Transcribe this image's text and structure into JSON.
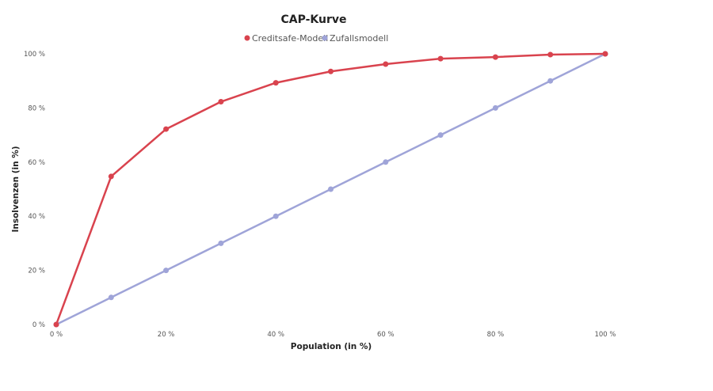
{
  "chart_data": {
    "type": "line",
    "title": "CAP-Kurve",
    "xlabel": "Population (in %)",
    "ylabel": "Insolvenzen (in %)",
    "x": [
      0,
      10,
      20,
      30,
      40,
      50,
      60,
      70,
      80,
      90,
      100
    ],
    "xlim": [
      0,
      100
    ],
    "ylim": [
      0,
      100
    ],
    "x_ticks": [
      "0 %",
      "20 %",
      "40 %",
      "60 %",
      "80 %",
      "100 %"
    ],
    "y_ticks": [
      "0 %",
      "20 %",
      "40 %",
      "60 %",
      "80 %",
      "100 %"
    ],
    "grid": false,
    "legend_position": "top",
    "series": [
      {
        "name": "Creditsafe-Modell",
        "color": "#d9434e",
        "values": [
          0,
          54.7,
          72.2,
          82.3,
          89.3,
          93.5,
          96.2,
          98.2,
          98.8,
          99.7,
          100
        ]
      },
      {
        "name": "Zufallsmodell",
        "color": "#9fa4d8",
        "values": [
          0,
          10,
          20,
          30,
          40,
          50,
          60,
          70,
          80,
          90,
          100
        ]
      }
    ]
  }
}
